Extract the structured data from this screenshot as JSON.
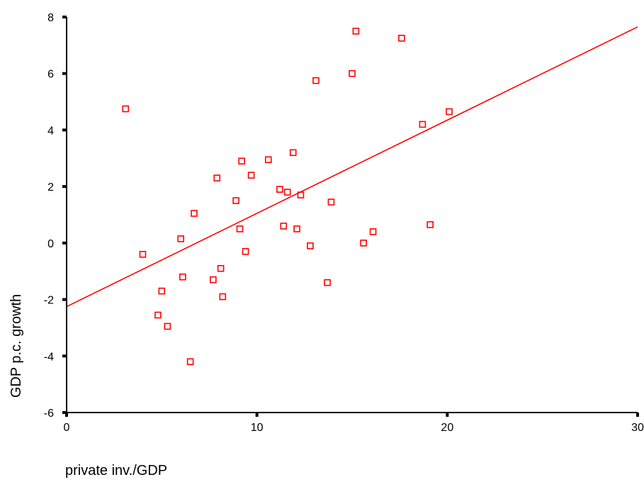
{
  "chart_data": {
    "type": "scatter",
    "title": "",
    "xlabel": "private inv./GDP",
    "ylabel": "GDP p.c. growth",
    "xlim": [
      0,
      30
    ],
    "ylim": [
      -6,
      8
    ],
    "x_ticks": [
      0,
      10,
      20,
      30
    ],
    "y_ticks": [
      -6,
      -4,
      -2,
      0,
      2,
      4,
      6,
      8
    ],
    "grid": false,
    "legend": "none",
    "marker": "hollow-square",
    "marker_color": "#ff0000",
    "fit_line": {
      "x": [
        0,
        30
      ],
      "y": [
        -2.25,
        7.65
      ],
      "color": "#ff0000"
    },
    "points": [
      {
        "x": 3.1,
        "y": 4.75
      },
      {
        "x": 4.0,
        "y": -0.4
      },
      {
        "x": 4.8,
        "y": -2.55
      },
      {
        "x": 5.0,
        "y": -1.7
      },
      {
        "x": 5.3,
        "y": -2.95
      },
      {
        "x": 6.0,
        "y": 0.15
      },
      {
        "x": 6.1,
        "y": -1.2
      },
      {
        "x": 6.5,
        "y": -4.2
      },
      {
        "x": 6.7,
        "y": 1.05
      },
      {
        "x": 7.7,
        "y": -1.3
      },
      {
        "x": 7.9,
        "y": 2.3
      },
      {
        "x": 8.1,
        "y": -0.9
      },
      {
        "x": 8.2,
        "y": -1.9
      },
      {
        "x": 8.9,
        "y": 1.5
      },
      {
        "x": 9.1,
        "y": 0.5
      },
      {
        "x": 9.2,
        "y": 2.9
      },
      {
        "x": 9.4,
        "y": -0.3
      },
      {
        "x": 9.7,
        "y": 2.4
      },
      {
        "x": 10.6,
        "y": 2.95
      },
      {
        "x": 11.2,
        "y": 1.9
      },
      {
        "x": 11.4,
        "y": 0.6
      },
      {
        "x": 11.6,
        "y": 1.8
      },
      {
        "x": 11.9,
        "y": 3.2
      },
      {
        "x": 12.1,
        "y": 0.5
      },
      {
        "x": 12.3,
        "y": 1.7
      },
      {
        "x": 12.8,
        "y": -0.1
      },
      {
        "x": 13.1,
        "y": 5.75
      },
      {
        "x": 13.7,
        "y": -1.4
      },
      {
        "x": 13.9,
        "y": 1.45
      },
      {
        "x": 15.0,
        "y": 6.0
      },
      {
        "x": 15.2,
        "y": 7.5
      },
      {
        "x": 15.6,
        "y": 0.0
      },
      {
        "x": 16.1,
        "y": 0.4
      },
      {
        "x": 17.6,
        "y": 7.25
      },
      {
        "x": 18.7,
        "y": 4.2
      },
      {
        "x": 19.1,
        "y": 0.65
      },
      {
        "x": 20.1,
        "y": 4.65
      }
    ]
  }
}
